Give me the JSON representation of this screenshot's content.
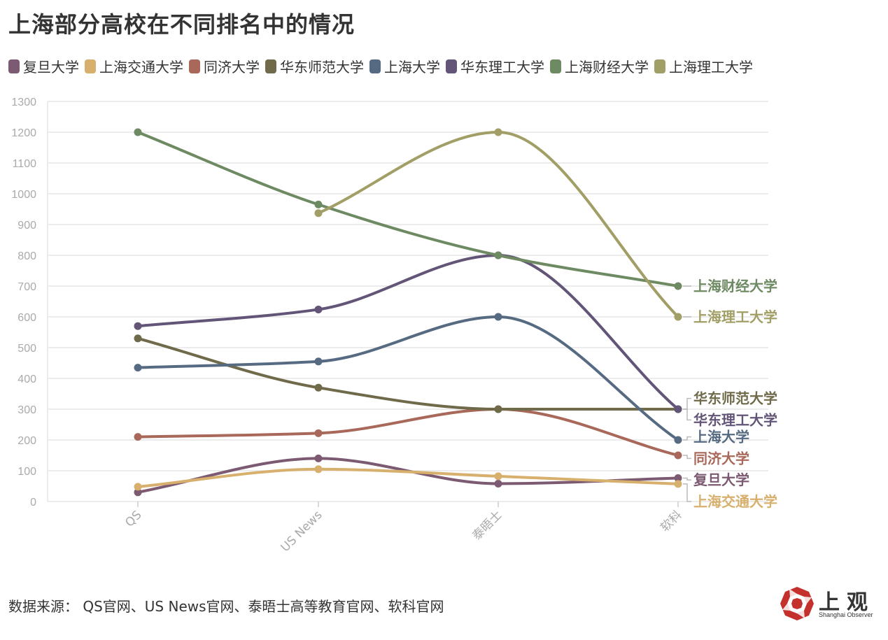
{
  "title": "上海部分高校在不同排名中的情况",
  "source": "数据来源：  QS官网、US News官网、泰晤士高等教育官网、软科官网",
  "logo": {
    "text": "上观",
    "subtitle": "Shanghai Observer",
    "icon": "shanghai-observer-logo-icon"
  },
  "chart_data": {
    "type": "line",
    "categories": [
      "QS",
      "US News",
      "泰晤士",
      "软科"
    ],
    "ylim": [
      0,
      1300
    ],
    "yticks": [
      0,
      100,
      200,
      300,
      400,
      500,
      600,
      700,
      800,
      900,
      1000,
      1100,
      1200,
      1300
    ],
    "grid": true,
    "legend": "top",
    "series": [
      {
        "name": "复旦大学",
        "color": "#7b5a72",
        "values": [
          30,
          140,
          58,
          76
        ]
      },
      {
        "name": "上海交通大学",
        "color": "#d8b06e",
        "values": [
          48,
          105,
          82,
          57
        ]
      },
      {
        "name": "同济大学",
        "color": "#a8685a",
        "values": [
          210,
          222,
          300,
          150
        ]
      },
      {
        "name": "华东师范大学",
        "color": "#6f6a4a",
        "values": [
          530,
          370,
          300,
          300
        ]
      },
      {
        "name": "上海大学",
        "color": "#566b82",
        "values": [
          435,
          455,
          600,
          200
        ]
      },
      {
        "name": "华东理工大学",
        "color": "#625577",
        "values": [
          570,
          624,
          800,
          300
        ]
      },
      {
        "name": "上海财经大学",
        "color": "#6e8a62",
        "values": [
          1200,
          965,
          800,
          700
        ]
      },
      {
        "name": "上海理工大学",
        "color": "#a19e66",
        "values": [
          null,
          937,
          1200,
          600
        ]
      }
    ],
    "end_labels": [
      {
        "name": "上海财经大学",
        "label_value": 700,
        "bracket": [
          700,
          700
        ]
      },
      {
        "name": "上海理工大学",
        "label_value": 600,
        "bracket": [
          600,
          600
        ]
      },
      {
        "name": "华东师范大学",
        "label_value": 335,
        "bracket": [
          300,
          300
        ]
      },
      {
        "name": "华东理工大学",
        "label_value": 265,
        "bracket": [
          300,
          300
        ]
      },
      {
        "name": "上海大学",
        "label_value": 210,
        "bracket": [
          200,
          200
        ]
      },
      {
        "name": "同济大学",
        "label_value": 140,
        "bracket": [
          150,
          150
        ]
      },
      {
        "name": "复旦大学",
        "label_value": 70,
        "bracket": [
          76,
          76
        ]
      },
      {
        "name": "上海交通大学",
        "label_value": 0,
        "bracket": [
          57,
          57
        ]
      }
    ]
  }
}
